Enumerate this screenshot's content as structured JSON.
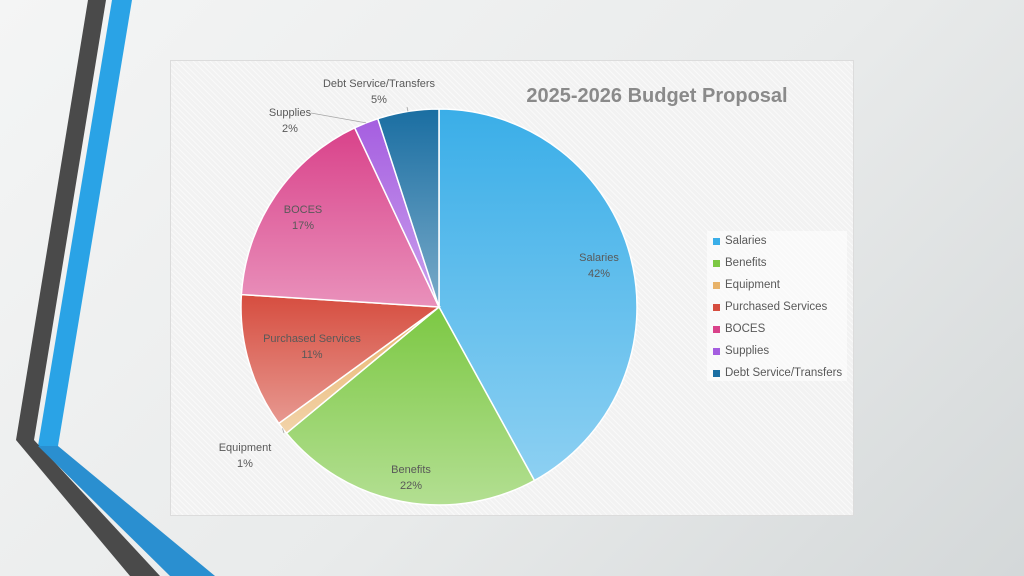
{
  "chart_data": {
    "type": "pie",
    "title": "2025-2026 Budget Proposal",
    "slices": [
      {
        "name": "Salaries",
        "value": 42,
        "label": "42%",
        "color": "#3aaee8"
      },
      {
        "name": "Benefits",
        "value": 22,
        "label": "22%",
        "color": "#7cc843"
      },
      {
        "name": "Equipment",
        "value": 1,
        "label": "1%",
        "color": "#e8b36a"
      },
      {
        "name": "Purchased Services",
        "value": 11,
        "label": "11%",
        "color": "#d64d3f"
      },
      {
        "name": "BOCES",
        "value": 17,
        "label": "17%",
        "color": "#d9428a"
      },
      {
        "name": "Supplies",
        "value": 2,
        "label": "2%",
        "color": "#a55ee0"
      },
      {
        "name": "Debt Service/Transfers",
        "value": 5,
        "label": "5%",
        "color": "#1a6ea2"
      }
    ],
    "legend_position": "right",
    "start_angle": "12 o'clock",
    "direction": "clockwise"
  }
}
